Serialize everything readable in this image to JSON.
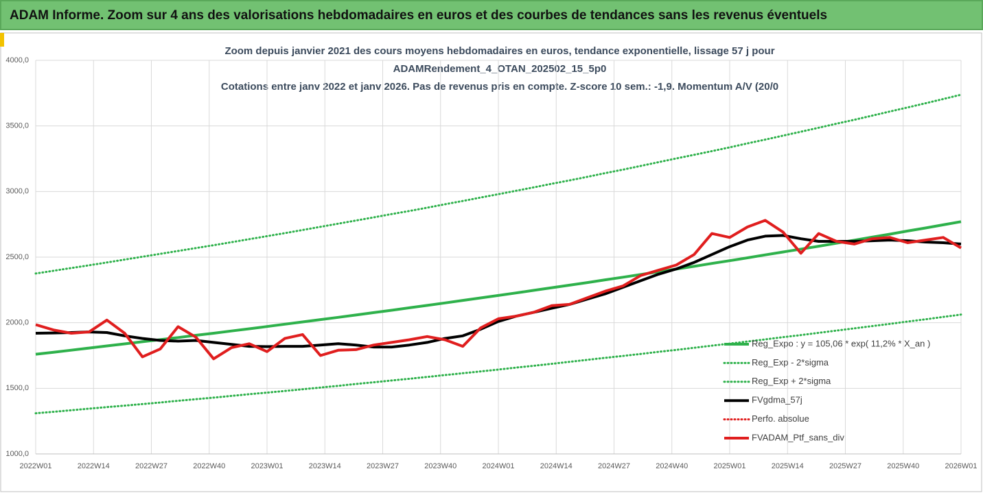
{
  "header": "ADAM Informe. Zoom sur 4 ans des valorisations hebdomadaires en euros et des courbes de tendances sans les revenus éventuels",
  "chart_data": {
    "type": "line",
    "title": [
      "Zoom depuis janvier 2021 des cours moyens hebdomadaires  en euros, tendance exponentielle, lissage 57 j pour",
      "ADAMRendement_4_OTAN_202502_15_5p0",
      "Cotations entre janv 2022 et janv 2026. Pas de revenus pris en compte. Z-score 10 sem.: -1,9. Momentum A/V (20/0"
    ],
    "x": [
      0,
      4,
      8,
      12,
      16,
      20,
      24,
      28,
      32,
      36,
      40,
      44,
      48,
      52,
      56,
      60,
      64,
      68,
      72,
      76,
      80,
      84,
      88,
      92,
      96,
      100,
      104,
      108,
      112,
      116,
      120,
      124,
      128,
      132,
      136,
      140,
      144,
      148,
      152,
      156,
      160,
      164,
      168,
      172,
      176,
      180,
      184,
      188,
      192,
      196,
      200,
      204,
      208
    ],
    "xlim": [
      0,
      208
    ],
    "xticks": [
      {
        "value": 0,
        "label": "2022W01"
      },
      {
        "value": 13,
        "label": "2022W14"
      },
      {
        "value": 26,
        "label": "2022W27"
      },
      {
        "value": 39,
        "label": "2022W40"
      },
      {
        "value": 52,
        "label": "2023W01"
      },
      {
        "value": 65,
        "label": "2023W14"
      },
      {
        "value": 78,
        "label": "2023W27"
      },
      {
        "value": 91,
        "label": "2023W40"
      },
      {
        "value": 104,
        "label": "2024W01"
      },
      {
        "value": 117,
        "label": "2024W14"
      },
      {
        "value": 130,
        "label": "2024W27"
      },
      {
        "value": 143,
        "label": "2024W40"
      },
      {
        "value": 156,
        "label": "2025W01"
      },
      {
        "value": 169,
        "label": "2025W14"
      },
      {
        "value": 182,
        "label": "2025W27"
      },
      {
        "value": 195,
        "label": "2025W40"
      },
      {
        "value": 208,
        "label": "2026W01"
      }
    ],
    "ylim": [
      1000,
      4000
    ],
    "yticks": [
      {
        "value": 1000,
        "label": "1000,0"
      },
      {
        "value": 1500,
        "label": "1500,0"
      },
      {
        "value": 2000,
        "label": "2000,0"
      },
      {
        "value": 2500,
        "label": "2500,0"
      },
      {
        "value": 3000,
        "label": "3000,0"
      },
      {
        "value": 3500,
        "label": "3500,0"
      },
      {
        "value": 4000,
        "label": "4000,0"
      }
    ],
    "grid": true,
    "legend": "right",
    "series": [
      {
        "name": "Reg_Expo : y = 105,06 * exp( 11,2% *  X_an )",
        "color": "#2eb14b",
        "dash": false,
        "values": [
          1760,
          1775,
          1791,
          1807,
          1823,
          1839,
          1855,
          1871,
          1887,
          1904,
          1920,
          1937,
          1954,
          1971,
          1989,
          2006,
          2024,
          2041,
          2059,
          2077,
          2095,
          2114,
          2132,
          2151,
          2170,
          2189,
          2208,
          2227,
          2247,
          2267,
          2286,
          2306,
          2327,
          2347,
          2368,
          2388,
          2409,
          2430,
          2452,
          2473,
          2495,
          2517,
          2539,
          2561,
          2583,
          2606,
          2629,
          2652,
          2675,
          2699,
          2722,
          2746,
          2770
        ]
      },
      {
        "name": "Reg_Exp - 2*sigma",
        "color": "#2eb14b",
        "dash": true,
        "values": [
          1310,
          1321,
          1333,
          1345,
          1357,
          1368,
          1380,
          1392,
          1405,
          1417,
          1429,
          1442,
          1455,
          1467,
          1480,
          1493,
          1506,
          1519,
          1533,
          1546,
          1560,
          1573,
          1587,
          1601,
          1615,
          1629,
          1643,
          1658,
          1672,
          1687,
          1702,
          1717,
          1732,
          1747,
          1762,
          1778,
          1793,
          1809,
          1825,
          1841,
          1857,
          1873,
          1890,
          1906,
          1923,
          1940,
          1957,
          1974,
          1991,
          2009,
          2026,
          2044,
          2062
        ]
      },
      {
        "name": "Reg_Exp + 2*sigma",
        "color": "#2eb14b",
        "dash": true,
        "values": [
          2375,
          2396,
          2417,
          2438,
          2459,
          2481,
          2503,
          2525,
          2547,
          2569,
          2591,
          2614,
          2637,
          2660,
          2683,
          2707,
          2731,
          2755,
          2779,
          2803,
          2828,
          2852,
          2877,
          2903,
          2928,
          2954,
          2980,
          3006,
          3032,
          3059,
          3085,
          3112,
          3140,
          3167,
          3195,
          3224,
          3252,
          3280,
          3308,
          3337,
          3367,
          3396,
          3426,
          3456,
          3486,
          3517,
          3547,
          3578,
          3610,
          3641,
          3673,
          3705,
          3738
        ]
      },
      {
        "name": "FVgdma_57j",
        "color": "#000000",
        "dash": false,
        "values": [
          1920,
          1922,
          1925,
          1930,
          1925,
          1900,
          1880,
          1865,
          1860,
          1865,
          1850,
          1835,
          1820,
          1818,
          1820,
          1820,
          1830,
          1840,
          1830,
          1815,
          1815,
          1830,
          1850,
          1880,
          1900,
          1950,
          2010,
          2050,
          2080,
          2110,
          2140,
          2180,
          2220,
          2270,
          2320,
          2370,
          2410,
          2460,
          2520,
          2580,
          2630,
          2660,
          2665,
          2640,
          2620,
          2620,
          2620,
          2625,
          2630,
          2625,
          2615,
          2610,
          2600
        ]
      },
      {
        "name": "Perfo. absolue",
        "color": "#e01e1e",
        "dash": true,
        "values": [
          null,
          null,
          null,
          null,
          null,
          null,
          null,
          null,
          null,
          null,
          null,
          null,
          null,
          null,
          null,
          null,
          null,
          null,
          null,
          null,
          null,
          null,
          null,
          null,
          null,
          null,
          null,
          null,
          null,
          null,
          null,
          null,
          null,
          null,
          null,
          null,
          null,
          null,
          null,
          null,
          null,
          null,
          null,
          null,
          null,
          null,
          null,
          null,
          null,
          null,
          null,
          null,
          null
        ]
      },
      {
        "name": "FVADAM_Ptf_sans_div",
        "color": "#e01e1e",
        "dash": false,
        "values": [
          1985,
          1945,
          1920,
          1930,
          2020,
          1920,
          1740,
          1800,
          1970,
          1890,
          1725,
          1810,
          1840,
          1780,
          1880,
          1910,
          1750,
          1790,
          1795,
          1830,
          1850,
          1870,
          1895,
          1870,
          1820,
          1960,
          2030,
          2050,
          2080,
          2130,
          2140,
          2190,
          2240,
          2280,
          2360,
          2400,
          2440,
          2520,
          2680,
          2650,
          2730,
          2780,
          2690,
          2530,
          2680,
          2620,
          2600,
          2640,
          2650,
          2610,
          2630,
          2650,
          2570
        ]
      }
    ]
  }
}
